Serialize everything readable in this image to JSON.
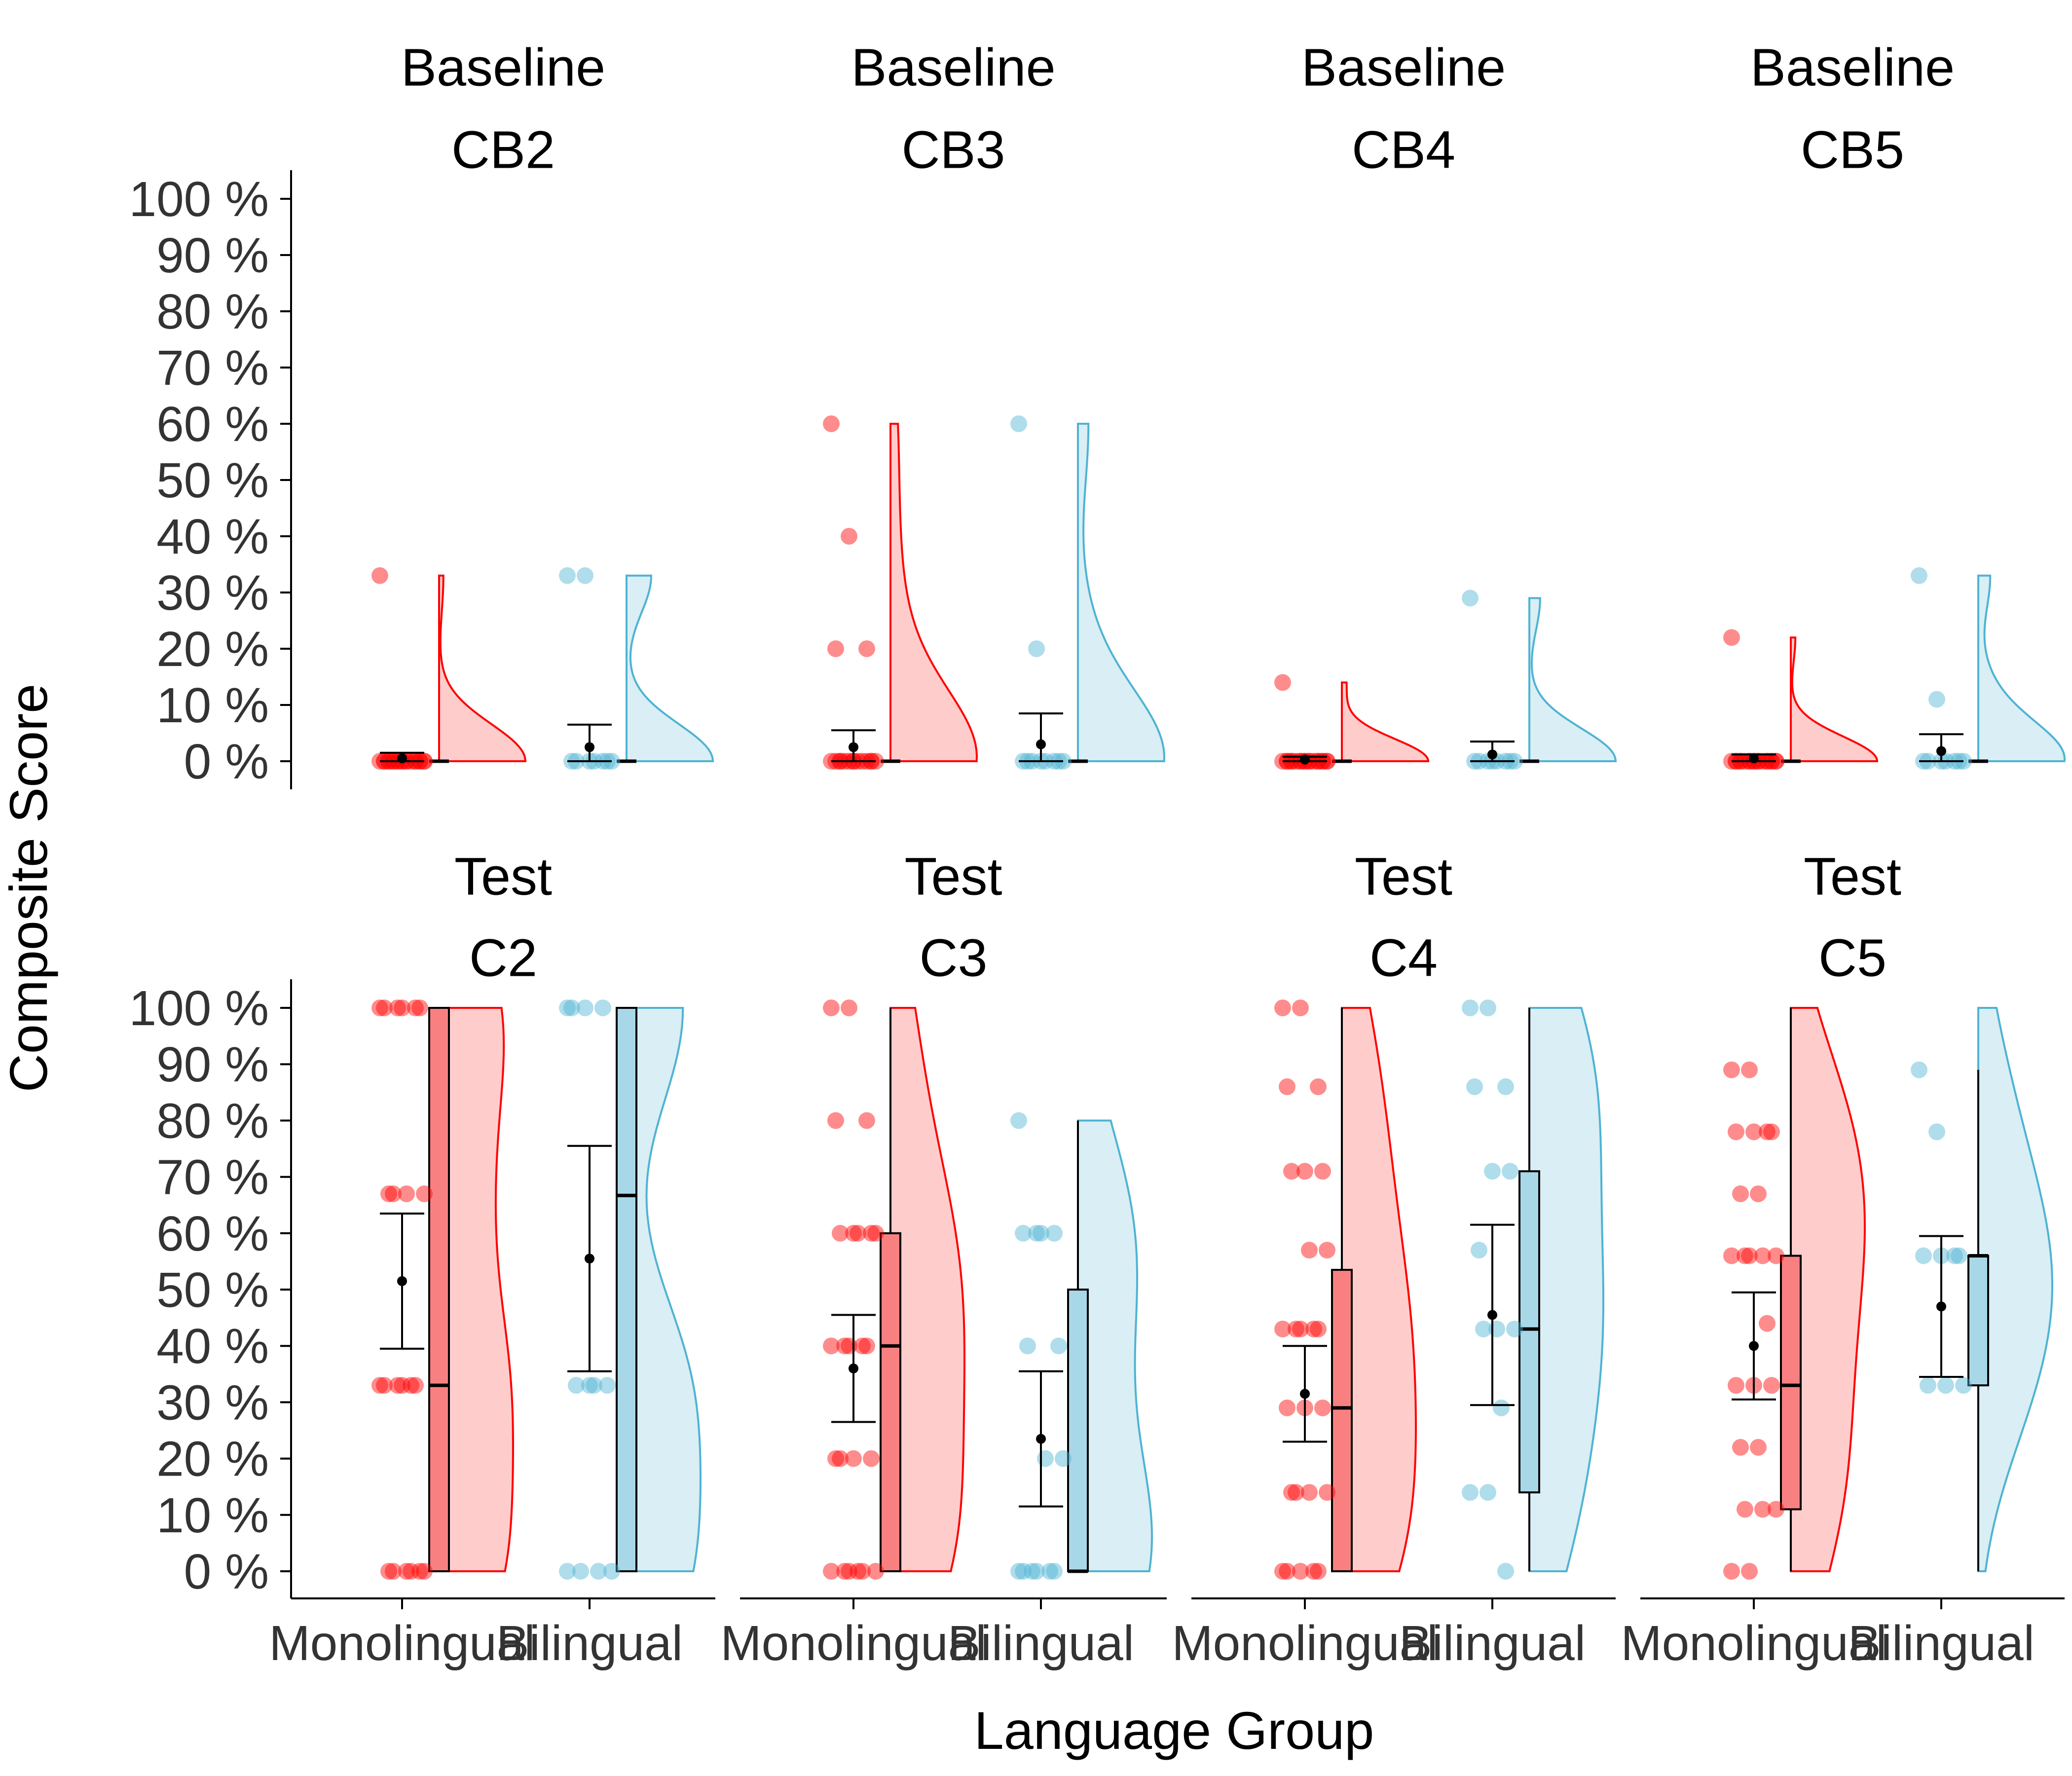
{
  "chart_data": {
    "type": "raincloud",
    "ylabel": "Composite Score",
    "xlabel": "Language Group",
    "y_ticks": [
      "0 %",
      "10 %",
      "20 %",
      "30 %",
      "40 %",
      "50 %",
      "60 %",
      "70 %",
      "80 %",
      "90 %",
      "100 %"
    ],
    "ylim": [
      0,
      100
    ],
    "groups": [
      "Monolingual",
      "Bilingual"
    ],
    "colors": {
      "Monolingual": "#ff0000",
      "Bilingual": "#4eb3d3",
      "Monolingual_fill": "#ffcccc",
      "Bilingual_fill": "#d9eef5",
      "Monolingual_box": "#f98080",
      "Bilingual_box": "#a8d8e8"
    },
    "panels": [
      {
        "title_line1": "Baseline",
        "title_line2": "CB2",
        "row": 0,
        "col": 0,
        "groups": [
          {
            "name": "Monolingual",
            "points": [
              33,
              0,
              0,
              0,
              0,
              0,
              0,
              0,
              0,
              0,
              0,
              0,
              0,
              0,
              0,
              0,
              0,
              0,
              0,
              0,
              0
            ],
            "mean": 0.5,
            "ci": [
              0,
              1.5
            ],
            "box": [
              0,
              0,
              0,
              0,
              0
            ],
            "violin_max": 33
          },
          {
            "name": "Bilingual",
            "points": [
              33,
              33,
              0,
              0,
              0,
              0,
              0,
              0,
              0
            ],
            "mean": 2.5,
            "ci": [
              0,
              6.5
            ],
            "box": [
              0,
              0,
              0,
              0,
              0
            ],
            "violin_max": 33
          }
        ]
      },
      {
        "title_line1": "Baseline",
        "title_line2": "CB3",
        "row": 0,
        "col": 1,
        "groups": [
          {
            "name": "Monolingual",
            "points": [
              60,
              40,
              20,
              20,
              0,
              0,
              0,
              0,
              0,
              0,
              0,
              0,
              0,
              0,
              0,
              0,
              0,
              0
            ],
            "mean": 2.5,
            "ci": [
              0,
              5.5
            ],
            "box": [
              0,
              0,
              0,
              0,
              0
            ],
            "violin_max": 60
          },
          {
            "name": "Bilingual",
            "points": [
              60,
              20,
              0,
              0,
              0,
              0,
              0,
              0,
              0,
              0
            ],
            "mean": 3.0,
            "ci": [
              0,
              8.5
            ],
            "box": [
              0,
              0,
              0,
              0,
              0
            ],
            "violin_max": 60
          }
        ]
      },
      {
        "title_line1": "Baseline",
        "title_line2": "CB4",
        "row": 0,
        "col": 2,
        "groups": [
          {
            "name": "Monolingual",
            "points": [
              14,
              0,
              0,
              0,
              0,
              0,
              0,
              0,
              0,
              0,
              0,
              0,
              0,
              0,
              0,
              0,
              0,
              0,
              0,
              0
            ],
            "mean": 0.3,
            "ci": [
              0,
              0.8
            ],
            "box": [
              0,
              0,
              0,
              0,
              0
            ],
            "violin_max": 14
          },
          {
            "name": "Bilingual",
            "points": [
              29,
              0,
              0,
              0,
              0,
              0,
              0,
              0,
              0
            ],
            "mean": 1.2,
            "ci": [
              0,
              3.5
            ],
            "box": [
              0,
              0,
              0,
              0,
              0
            ],
            "violin_max": 29
          }
        ]
      },
      {
        "title_line1": "Baseline",
        "title_line2": "CB5",
        "row": 0,
        "col": 3,
        "groups": [
          {
            "name": "Monolingual",
            "points": [
              22,
              0,
              0,
              0,
              0,
              0,
              0,
              0,
              0,
              0,
              0,
              0,
              0,
              0,
              0,
              0,
              0,
              0,
              0,
              0
            ],
            "mean": 0.5,
            "ci": [
              0,
              1.2
            ],
            "box": [
              0,
              0,
              0,
              0,
              0
            ],
            "violin_max": 22
          },
          {
            "name": "Bilingual",
            "points": [
              33,
              11,
              0,
              0,
              0,
              0,
              0,
              0,
              0
            ],
            "mean": 1.8,
            "ci": [
              0,
              4.8
            ],
            "box": [
              0,
              0,
              0,
              0,
              0
            ],
            "violin_max": 33
          }
        ]
      },
      {
        "title_line1": "Test",
        "title_line2": "C2",
        "row": 1,
        "col": 0,
        "groups": [
          {
            "name": "Monolingual",
            "points": [
              100,
              100,
              100,
              100,
              100,
              100,
              67,
              67,
              67,
              67,
              33,
              33,
              33,
              33,
              33,
              33,
              0,
              0,
              0,
              0,
              0,
              0
            ],
            "mean": 51.5,
            "ci": [
              39.5,
              63.5
            ],
            "box": [
              0,
              0,
              33,
              100,
              100
            ],
            "violin_max": 100
          },
          {
            "name": "Bilingual",
            "points": [
              100,
              100,
              100,
              100,
              33,
              33,
              33,
              33,
              0,
              0,
              0,
              0
            ],
            "mean": 55.5,
            "ci": [
              35.5,
              75.5
            ],
            "box": [
              0,
              0,
              66.7,
              100,
              100
            ],
            "violin_max": 100
          }
        ]
      },
      {
        "title_line1": "Test",
        "title_line2": "C3",
        "row": 1,
        "col": 1,
        "groups": [
          {
            "name": "Monolingual",
            "points": [
              100,
              100,
              80,
              80,
              60,
              60,
              60,
              60,
              60,
              40,
              40,
              40,
              40,
              40,
              20,
              20,
              20,
              20,
              0,
              0,
              0,
              0,
              0,
              0
            ],
            "mean": 36,
            "ci": [
              26.5,
              45.5
            ],
            "box": [
              0,
              0,
              40,
              60,
              100
            ],
            "violin_max": 100
          },
          {
            "name": "Bilingual",
            "points": [
              80,
              60,
              60,
              60,
              60,
              40,
              40,
              20,
              20,
              0,
              0,
              0,
              0,
              0,
              0
            ],
            "mean": 23.5,
            "ci": [
              11.5,
              35.5
            ],
            "box": [
              0,
              0,
              0,
              50,
              80
            ],
            "violin_max": 80
          }
        ]
      },
      {
        "title_line1": "Test",
        "title_line2": "C4",
        "row": 1,
        "col": 2,
        "groups": [
          {
            "name": "Monolingual",
            "points": [
              100,
              100,
              86,
              86,
              71,
              71,
              71,
              57,
              57,
              43,
              43,
              43,
              43,
              43,
              29,
              29,
              29,
              14,
              14,
              14,
              14,
              0,
              0,
              0,
              0,
              0
            ],
            "mean": 31.5,
            "ci": [
              23,
              40
            ],
            "box": [
              0,
              0,
              29,
              53.5,
              100
            ],
            "violin_max": 100
          },
          {
            "name": "Bilingual",
            "points": [
              100,
              100,
              86,
              86,
              71,
              71,
              57,
              43,
              43,
              43,
              29,
              14,
              14,
              0
            ],
            "mean": 45.5,
            "ci": [
              29.5,
              61.5
            ],
            "box": [
              0,
              14,
              43,
              71,
              100
            ],
            "violin_max": 100
          }
        ]
      },
      {
        "title_line1": "Test",
        "title_line2": "C5",
        "row": 1,
        "col": 3,
        "groups": [
          {
            "name": "Monolingual",
            "points": [
              89,
              89,
              78,
              78,
              78,
              78,
              67,
              67,
              56,
              56,
              56,
              56,
              56,
              44,
              33,
              33,
              33,
              22,
              22,
              11,
              11,
              11,
              0,
              0
            ],
            "mean": 40,
            "ci": [
              30.5,
              49.5
            ],
            "box": [
              0,
              11,
              33,
              56,
              100
            ],
            "violin_max": 100
          },
          {
            "name": "Bilingual",
            "points": [
              89,
              78,
              56,
              56,
              56,
              56,
              33,
              33,
              33
            ],
            "mean": 47,
            "ci": [
              34.5,
              59.5
            ],
            "box": [
              0,
              33,
              56,
              56,
              89
            ],
            "violin_max": 100
          }
        ]
      }
    ]
  }
}
